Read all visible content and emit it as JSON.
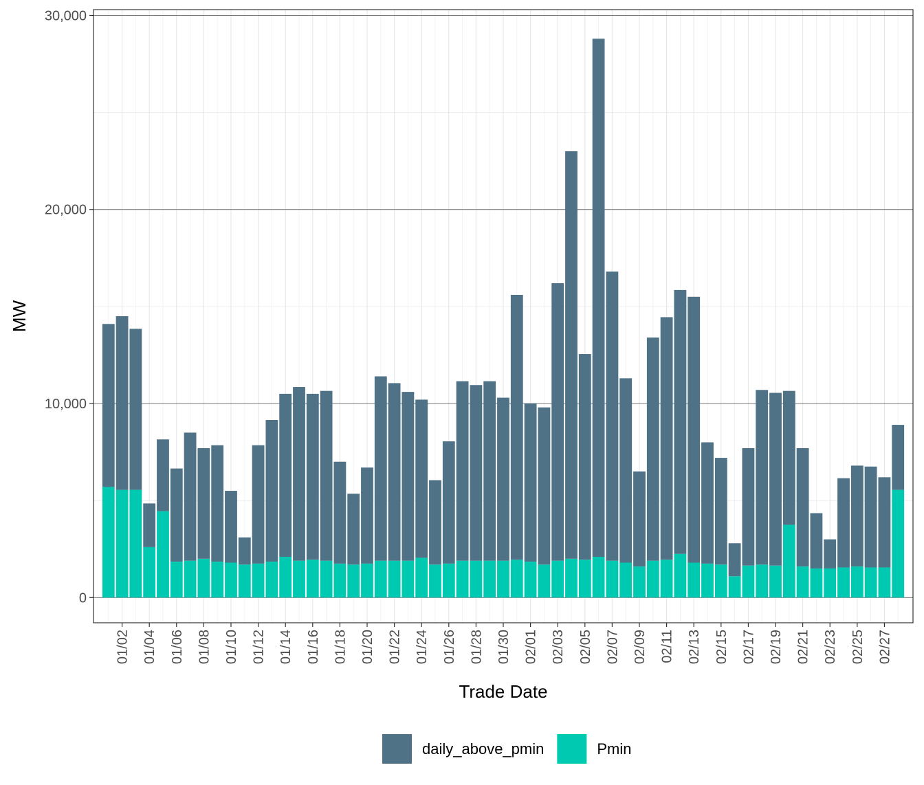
{
  "chart_data": {
    "type": "bar",
    "stacked": true,
    "xlabel": "Trade Date",
    "ylabel": "MW",
    "ylim": [
      -1300,
      30300
    ],
    "y_ticks": [
      0,
      10000,
      20000,
      30000
    ],
    "y_tick_labels": [
      "0",
      "10,000",
      "20,000",
      "30,000"
    ],
    "grid": true,
    "legend_position": "bottom",
    "categories": [
      "01/01",
      "01/02",
      "01/03",
      "01/04",
      "01/05",
      "01/06",
      "01/07",
      "01/08",
      "01/09",
      "01/10",
      "01/11",
      "01/12",
      "01/13",
      "01/14",
      "01/15",
      "01/16",
      "01/17",
      "01/18",
      "01/19",
      "01/20",
      "01/21",
      "01/22",
      "01/23",
      "01/24",
      "01/25",
      "01/26",
      "01/27",
      "01/28",
      "01/29",
      "01/30",
      "01/31",
      "02/01",
      "02/02",
      "02/03",
      "02/04",
      "02/05",
      "02/06",
      "02/07",
      "02/08",
      "02/09",
      "02/10",
      "02/11",
      "02/12",
      "02/13",
      "02/14",
      "02/15",
      "02/16",
      "02/17",
      "02/18",
      "02/19",
      "02/20",
      "02/21",
      "02/22",
      "02/23",
      "02/24",
      "02/25",
      "02/26",
      "02/27",
      "02/28"
    ],
    "x_tick_labels": [
      "01/02",
      "01/04",
      "01/06",
      "01/08",
      "01/10",
      "01/12",
      "01/14",
      "01/16",
      "01/18",
      "01/20",
      "01/22",
      "01/24",
      "01/26",
      "01/28",
      "01/30",
      "02/01",
      "02/03",
      "02/05",
      "02/07",
      "02/09",
      "02/11",
      "02/13",
      "02/15",
      "02/17",
      "02/19",
      "02/21",
      "02/23",
      "02/25",
      "02/27"
    ],
    "series": [
      {
        "name": "daily_above_pmin",
        "color": "#4f7287",
        "values": [
          8400,
          8950,
          8300,
          2250,
          3700,
          4800,
          6600,
          5700,
          6000,
          3700,
          1400,
          6100,
          7300,
          8400,
          8950,
          8550,
          8750,
          5250,
          3650,
          4950,
          9500,
          9150,
          8700,
          8150,
          4350,
          6300,
          9250,
          9050,
          9250,
          8400,
          13650,
          8150,
          8100,
          14300,
          21000,
          10600,
          26700,
          14900,
          9500,
          4900,
          11500,
          12500,
          13600,
          13700,
          6250,
          5500,
          1700,
          6050,
          9000,
          8900,
          6900,
          6100,
          2850,
          1500,
          4600,
          5200,
          5200,
          4650,
          3350
        ]
      },
      {
        "name": "Pmin",
        "color": "#00c9b1",
        "values": [
          5700,
          5550,
          5550,
          2600,
          4450,
          1850,
          1900,
          2000,
          1850,
          1800,
          1700,
          1750,
          1850,
          2100,
          1900,
          1950,
          1900,
          1750,
          1700,
          1750,
          1900,
          1900,
          1900,
          2050,
          1700,
          1750,
          1900,
          1900,
          1900,
          1900,
          1950,
          1850,
          1700,
          1900,
          2000,
          1950,
          2100,
          1900,
          1800,
          1600,
          1900,
          1950,
          2250,
          1800,
          1750,
          1700,
          1100,
          1650,
          1700,
          1650,
          3750,
          1600,
          1500,
          1500,
          1550,
          1600,
          1550,
          1550,
          5550
        ]
      }
    ]
  }
}
